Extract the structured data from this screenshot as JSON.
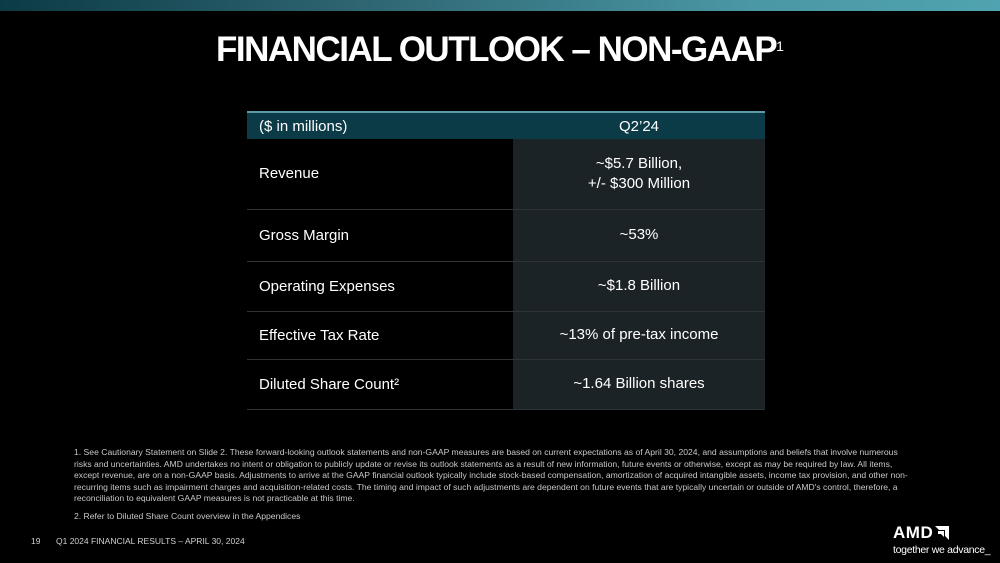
{
  "title": "FINANCIAL OUTLOOK – NON-GAAP",
  "title_sup": "1",
  "table": {
    "headers": [
      "($ in millions)",
      "Q2’24"
    ],
    "rows": [
      {
        "label": "Revenue",
        "value": "~$5.7 Billion,",
        "value2": "+/- $300 Million"
      },
      {
        "label": "Gross Margin",
        "value": "~53%"
      },
      {
        "label": "Operating Expenses",
        "value": "~$1.8 Billion"
      },
      {
        "label": "Effective Tax Rate",
        "value": "~13% of pre-tax income"
      },
      {
        "label": "Diluted Share Count²",
        "value": "~1.64 Billion shares"
      }
    ]
  },
  "footnotes": [
    "1.  See Cautionary Statement on Slide 2. These forward-looking outlook statements and non-GAAP measures are based on current expectations as of April 30, 2024, and assumptions and beliefs that involve numerous risks and uncertainties. AMD undertakes no intent or obligation to publicly update or revise its outlook statements as a result of new information, future events or otherwise, except as may be required by law. All items, except revenue, are on a non-GAAP basis. Adjustments to arrive at the GAAP financial outlook typically include stock-based compensation, amortization of acquired intangible assets, income tax provision, and other non-recurring items such as impairment charges and acquisition-related costs. The timing and impact of such adjustments are dependent on future events that are typically uncertain or outside of AMD's control, therefore, a reconciliation to equivalent GAAP measures is not practicable at this time.",
    "2.  Refer to Diluted Share Count overview in the Appendices"
  ],
  "footer": {
    "page": "19",
    "text": "Q1 2024 FINANCIAL RESULTS – APRIL 30, 2024"
  },
  "logo": {
    "name": "AMD",
    "tagline": "together we advance_"
  },
  "colors": {
    "header_bg": "#0c3b48",
    "value_bg": "#1c2326",
    "accent": "#4a97a5"
  }
}
